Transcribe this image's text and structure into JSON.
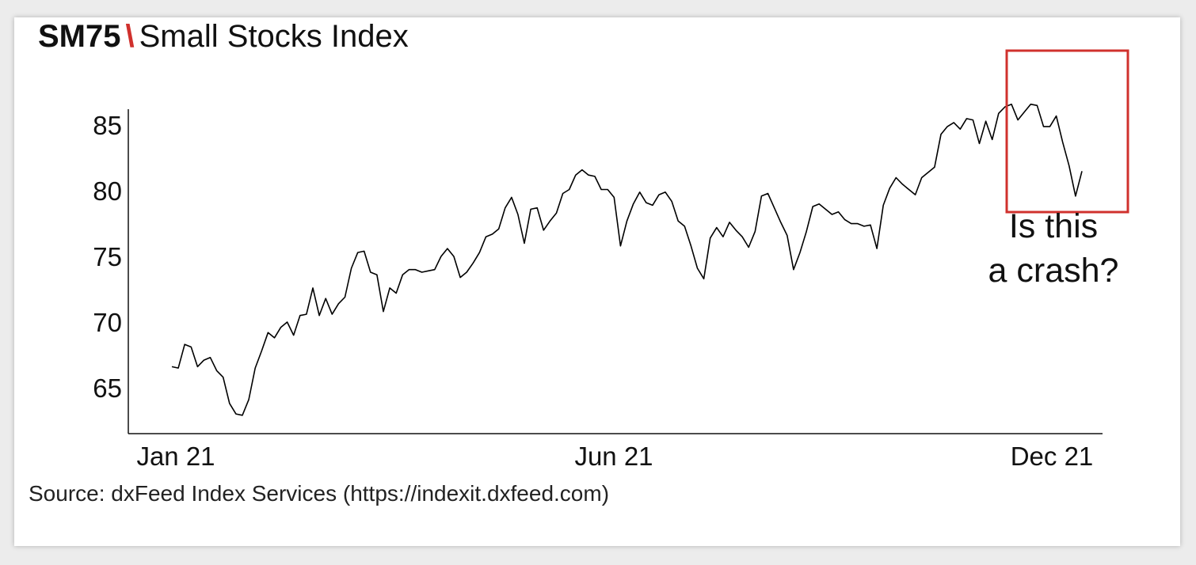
{
  "title": {
    "code": "SM75",
    "separator": "\\",
    "name": "Small Stocks Index"
  },
  "source": "Source: dxFeed Index Services (https://indexit.dxfeed.com)",
  "annotation": {
    "line1": "Is this",
    "line2": "a crash?"
  },
  "colors": {
    "line": "#000000",
    "highlight_box": "#d0312d",
    "separator": "#d0312d"
  },
  "chart_data": {
    "type": "line",
    "title": "SM75 \\ Small Stocks Index",
    "xlabel": "",
    "ylabel": "",
    "x_tick_labels": [
      "Jan 21",
      "Jun 21",
      "Dec 21"
    ],
    "y_ticks": [
      65,
      70,
      75,
      80,
      85
    ],
    "ylim": [
      61.5,
      86.7
    ],
    "grid": false,
    "legend": "none",
    "highlight": {
      "label": "Is this a crash?",
      "x_from": "late Nov 21",
      "x_to": "Dec 21"
    },
    "series": [
      {
        "values": [
          66.6,
          66.5,
          68.3,
          68.1,
          66.6,
          67.1,
          67.3,
          66.3,
          65.8,
          63.8,
          63.0,
          62.9,
          64.1,
          66.5,
          67.8,
          69.2,
          68.8,
          69.6,
          70.0,
          69.0,
          70.5,
          70.6,
          72.6,
          70.5,
          71.8,
          70.6,
          71.4,
          71.9,
          74.1,
          75.3,
          75.4,
          73.8,
          73.6,
          70.8,
          72.6,
          72.2,
          73.6,
          74.0,
          74.0,
          73.8,
          73.9,
          74.0,
          75.0,
          75.6,
          75.0,
          73.4,
          73.8,
          74.5,
          75.3,
          76.5,
          76.7,
          77.1,
          78.7,
          79.5,
          78.2,
          76.0,
          78.6,
          78.7,
          77.0,
          77.7,
          78.3,
          79.8,
          80.1,
          81.2,
          81.6,
          81.2,
          81.1,
          80.1,
          80.1,
          79.5,
          75.8,
          77.7,
          79.0,
          79.9,
          79.1,
          78.9,
          79.7,
          79.9,
          79.2,
          77.7,
          77.3,
          75.8,
          74.1,
          73.3,
          76.4,
          77.2,
          76.5,
          77.6,
          77.0,
          76.5,
          75.7,
          76.9,
          79.6,
          79.8,
          78.7,
          77.6,
          76.6,
          74.0,
          75.3,
          76.9,
          78.8,
          79.0,
          78.6,
          78.2,
          78.4,
          77.8,
          77.5,
          77.5,
          77.3,
          77.4,
          75.6,
          78.9,
          80.2,
          81.0,
          80.5,
          80.1,
          79.7,
          81.0,
          81.4,
          81.8,
          84.3,
          84.9,
          85.2,
          84.7,
          85.5,
          85.4,
          83.6,
          85.3,
          83.9,
          85.9,
          86.4,
          86.6,
          85.4,
          86.0,
          86.6,
          86.5,
          84.9,
          84.9,
          85.7,
          83.7,
          81.9,
          79.6,
          81.5
        ]
      }
    ]
  }
}
